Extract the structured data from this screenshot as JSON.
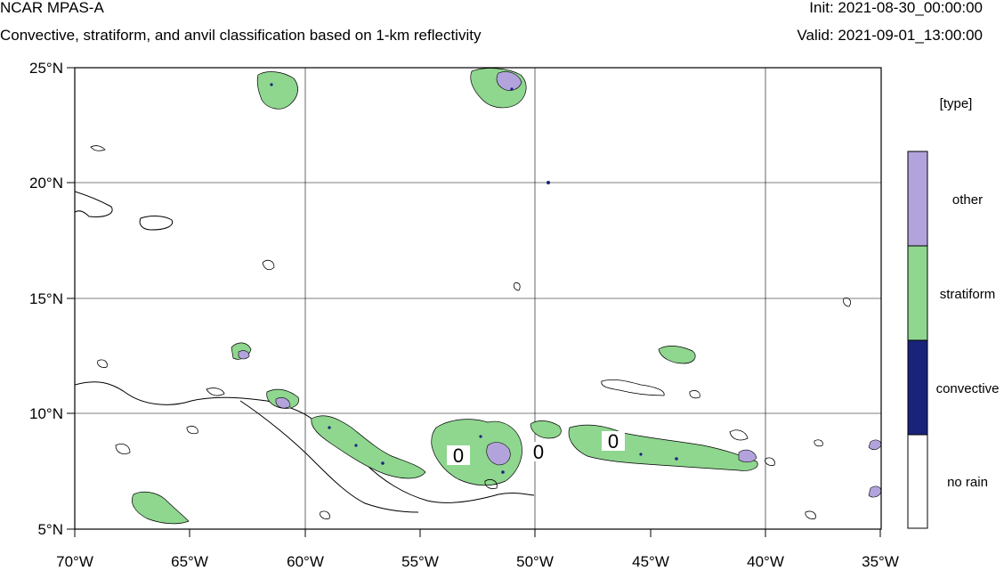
{
  "header": {
    "title": "NCAR MPAS-A",
    "subtitle": "Convective, stratiform, and anvil classification based on 1-km reflectivity",
    "init": "Init: 2021-08-30_00:00:00",
    "valid": "Valid: 2021-09-01_13:00:00"
  },
  "map": {
    "lon_range": [
      -70,
      -35
    ],
    "lat_range": [
      5,
      25
    ],
    "lat_ticks": [
      "25°N",
      "20°N",
      "15°N",
      "10°N",
      "5°N"
    ],
    "lon_ticks": [
      "70°W",
      "65°W",
      "60°W",
      "55°W",
      "50°W",
      "45°W",
      "40°W",
      "35°W"
    ],
    "contour_label": "0",
    "grid": true
  },
  "legend": {
    "title": "[type]",
    "items": [
      {
        "label": "other",
        "color": "#b3a3dc"
      },
      {
        "label": "stratiform",
        "color": "#8fd68f"
      },
      {
        "label": "convective",
        "color": "#1a237a"
      },
      {
        "label": "no rain",
        "color": "#ffffff"
      }
    ]
  }
}
